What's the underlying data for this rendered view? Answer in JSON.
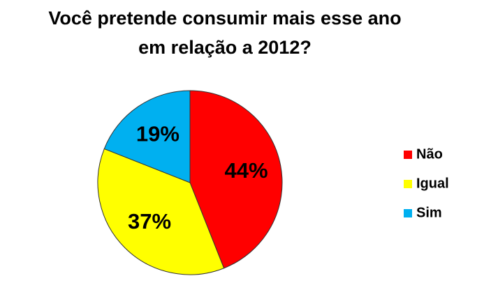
{
  "chart_data": {
    "type": "pie",
    "title": [
      "Você pretende consumir mais esse ano",
      "em relação a 2012?"
    ],
    "categories": [
      "Não",
      "Igual",
      "Sim"
    ],
    "values": [
      44,
      37,
      19
    ],
    "value_labels": [
      "44%",
      "37%",
      "19%"
    ],
    "colors": [
      "#ff0000",
      "#ffff00",
      "#00b0f0"
    ],
    "legend": "right"
  }
}
